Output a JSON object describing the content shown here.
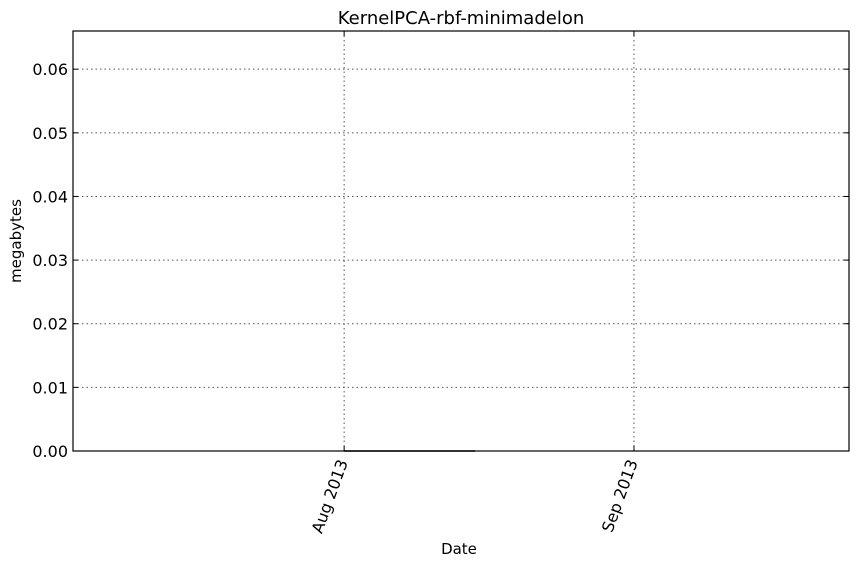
{
  "chart_data": {
    "type": "line",
    "title": "KernelPCA-rbf-minimadelon",
    "xlabel": "Date",
    "ylabel": "megabytes",
    "x_ticks": [
      "Aug 2013",
      "Sep 2013"
    ],
    "x_tick_values": [
      "2013-08-01",
      "2013-09-01"
    ],
    "xlim": [
      "2013-07-03",
      "2013-09-24"
    ],
    "y_ticks": [
      "0.00",
      "0.01",
      "0.02",
      "0.03",
      "0.04",
      "0.05",
      "0.06"
    ],
    "y_tick_values": [
      0,
      0.01,
      0.02,
      0.03,
      0.04,
      0.05,
      0.06
    ],
    "ylim": [
      0,
      0.066
    ],
    "grid": true,
    "series": [
      {
        "x": [
          "2013-08-01",
          "2013-08-15"
        ],
        "values": [
          0,
          0
        ],
        "color": "#000000"
      }
    ]
  }
}
